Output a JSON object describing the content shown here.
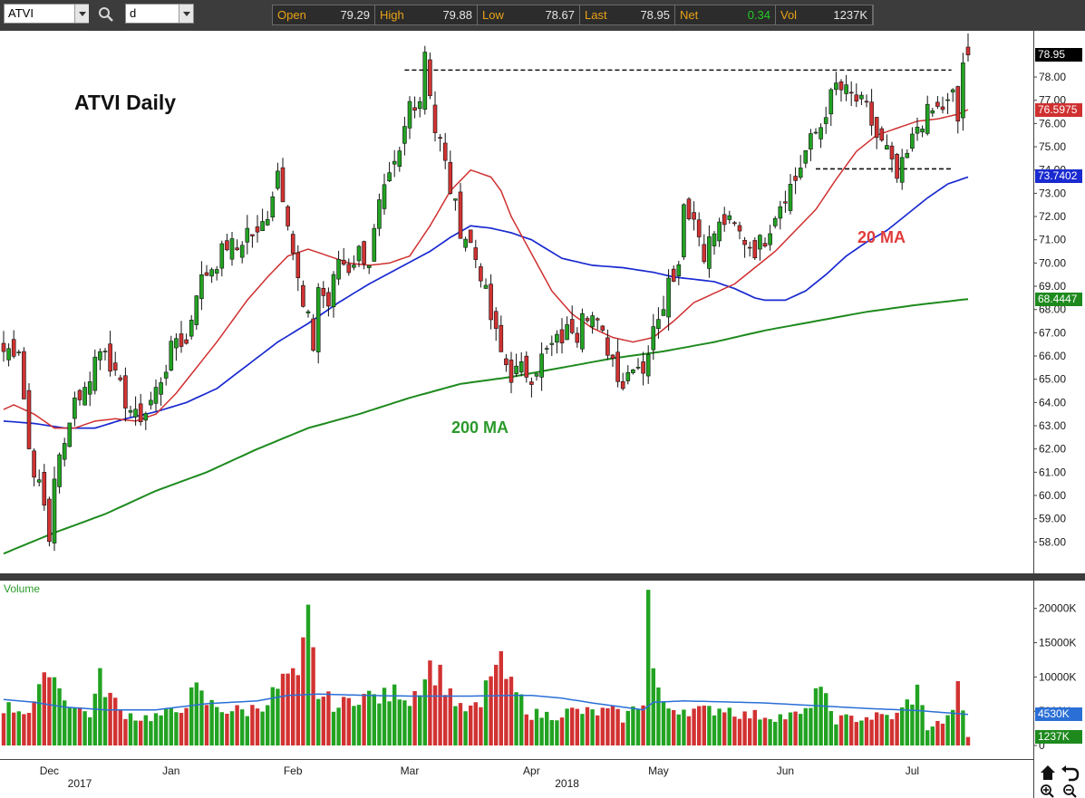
{
  "toolbar": {
    "symbol_value": "ATVI",
    "interval_value": "d",
    "quote": [
      {
        "label": "Open",
        "value": "79.29"
      },
      {
        "label": "High",
        "value": "79.88"
      },
      {
        "label": "Low",
        "value": "78.67"
      },
      {
        "label": "Last",
        "value": "78.95"
      },
      {
        "label": "Net",
        "value": "0.34"
      },
      {
        "label": "Vol",
        "value": "1237K"
      }
    ]
  },
  "colors": {
    "up": "#22a322",
    "down": "#d23232",
    "ma20": "#d03030",
    "ma50": "#1a2ad0",
    "ma200": "#1e8a1e",
    "vol_ma": "#2a6fd6"
  },
  "chart_data": {
    "type": "candlestick",
    "title": "ATVI Daily",
    "annotations": [
      "20 MA",
      "200 MA"
    ],
    "ylim": [
      57,
      79.6
    ],
    "price_ticks": [
      "58.00",
      "59.00",
      "60.00",
      "61.00",
      "62.00",
      "63.00",
      "64.00",
      "65.00",
      "66.00",
      "67.00",
      "68.00",
      "69.00",
      "70.00",
      "71.00",
      "72.00",
      "73.00",
      "74.00",
      "75.00",
      "76.00",
      "77.00",
      "78.00"
    ],
    "price_tags": [
      {
        "label": "78.95",
        "value": 78.95,
        "bg": "#000000",
        "fg": "#ffffff"
      },
      {
        "label": "76.5975",
        "value": 76.5975,
        "bg": "#d03030",
        "fg": "#ffffff"
      },
      {
        "label": "73.7402",
        "value": 73.7402,
        "bg": "#1a2ad0",
        "fg": "#ffffff"
      },
      {
        "label": "68.4447",
        "value": 68.4447,
        "bg": "#1e8a1e",
        "fg": "#ffffff"
      }
    ],
    "resistance_lines": [
      {
        "value": 78.3,
        "from": 79,
        "to": 186
      },
      {
        "value": 74.05,
        "from": 160,
        "to": 186
      }
    ],
    "month_labels": [
      {
        "label": "Dec",
        "index": 9
      },
      {
        "label": "Jan",
        "index": 33
      },
      {
        "label": "Feb",
        "index": 57
      },
      {
        "label": "Mar",
        "index": 80
      },
      {
        "label": "Apr",
        "index": 104
      },
      {
        "label": "May",
        "index": 129
      },
      {
        "label": "Jun",
        "index": 154
      },
      {
        "label": "Jul",
        "index": 179
      }
    ],
    "year_labels": [
      {
        "label": "2017",
        "index": 15
      },
      {
        "label": "2018",
        "index": 111
      }
    ],
    "anchors": {
      "close": [
        [
          0,
          66.2
        ],
        [
          3,
          66.4
        ],
        [
          5,
          62.0
        ],
        [
          8,
          59.5
        ],
        [
          9,
          58.1
        ],
        [
          10,
          60.9
        ],
        [
          12,
          62.1
        ],
        [
          13,
          63.5
        ],
        [
          14,
          64.2
        ],
        [
          16,
          64.5
        ],
        [
          18,
          65.9
        ],
        [
          20,
          66.5
        ],
        [
          22,
          65.0
        ],
        [
          24,
          64.1
        ],
        [
          26,
          63.3
        ],
        [
          28,
          63.6
        ],
        [
          30,
          64.5
        ],
        [
          32,
          65.6
        ],
        [
          34,
          66.8
        ],
        [
          36,
          66.5
        ],
        [
          38,
          68.9
        ],
        [
          40,
          69.6
        ],
        [
          42,
          70.1
        ],
        [
          44,
          70.8
        ],
        [
          46,
          70.6
        ],
        [
          48,
          71.4
        ],
        [
          50,
          71.1
        ],
        [
          52,
          72.2
        ],
        [
          54,
          74.0
        ],
        [
          56,
          72.0
        ],
        [
          57,
          70.5
        ],
        [
          58,
          69.2
        ],
        [
          59,
          68.0
        ],
        [
          60,
          67.5
        ],
        [
          61,
          66.4
        ],
        [
          62,
          69.0
        ],
        [
          64,
          68.2
        ],
        [
          66,
          70.2
        ],
        [
          68,
          69.8
        ],
        [
          70,
          70.5
        ],
        [
          72,
          70.1
        ],
        [
          74,
          72.4
        ],
        [
          76,
          73.5
        ],
        [
          78,
          74.6
        ],
        [
          80,
          76.9
        ],
        [
          82,
          77.1
        ],
        [
          83,
          79.2
        ],
        [
          85,
          75.7
        ],
        [
          86,
          75.2
        ],
        [
          88,
          73.2
        ],
        [
          90,
          71.5
        ],
        [
          92,
          70.8
        ],
        [
          94,
          69.6
        ],
        [
          96,
          67.6
        ],
        [
          98,
          66.1
        ],
        [
          100,
          65.2
        ],
        [
          102,
          65.4
        ],
        [
          104,
          65.2
        ],
        [
          106,
          65.9
        ],
        [
          108,
          66.4
        ],
        [
          110,
          66.8
        ],
        [
          112,
          67.3
        ],
        [
          113,
          67.0
        ],
        [
          114,
          68.2
        ],
        [
          116,
          67.7
        ],
        [
          118,
          66.8
        ],
        [
          120,
          65.9
        ],
        [
          121,
          65.3
        ],
        [
          122,
          64.8
        ],
        [
          124,
          65.8
        ],
        [
          126,
          65.5
        ],
        [
          128,
          67.0
        ],
        [
          129,
          67.9
        ],
        [
          130,
          68.3
        ],
        [
          131,
          69.8
        ],
        [
          132,
          69.1
        ],
        [
          133,
          70.3
        ],
        [
          134,
          72.6
        ],
        [
          136,
          71.9
        ],
        [
          138,
          70.5
        ],
        [
          140,
          71.3
        ],
        [
          142,
          71.8
        ],
        [
          144,
          71.5
        ],
        [
          146,
          71.0
        ],
        [
          148,
          70.6
        ],
        [
          150,
          71.1
        ],
        [
          152,
          72.2
        ],
        [
          154,
          73.0
        ],
        [
          156,
          73.6
        ],
        [
          158,
          74.8
        ],
        [
          160,
          75.6
        ],
        [
          161,
          75.9
        ],
        [
          162,
          76.6
        ],
        [
          164,
          77.6
        ],
        [
          166,
          77.3
        ],
        [
          168,
          77.0
        ],
        [
          170,
          76.6
        ],
        [
          172,
          75.4
        ],
        [
          174,
          74.8
        ],
        [
          175,
          74.1
        ],
        [
          176,
          73.6
        ],
        [
          178,
          74.6
        ],
        [
          180,
          75.9
        ],
        [
          182,
          76.4
        ],
        [
          184,
          76.6
        ],
        [
          186,
          76.8
        ],
        [
          187,
          77.2
        ],
        [
          188,
          76.1
        ],
        [
          189,
          78.61
        ],
        [
          190,
          78.95
        ]
      ],
      "ma20": [
        [
          0,
          63.7
        ],
        [
          2,
          63.9
        ],
        [
          6,
          63.5
        ],
        [
          10,
          62.9
        ],
        [
          14,
          62.9
        ],
        [
          18,
          63.2
        ],
        [
          22,
          63.3
        ],
        [
          26,
          63.2
        ],
        [
          30,
          63.5
        ],
        [
          34,
          64.4
        ],
        [
          38,
          65.5
        ],
        [
          42,
          66.6
        ],
        [
          46,
          67.8
        ],
        [
          48,
          68.4
        ],
        [
          52,
          69.4
        ],
        [
          56,
          70.3
        ],
        [
          60,
          70.6
        ],
        [
          64,
          70.3
        ],
        [
          68,
          70.0
        ],
        [
          72,
          69.9
        ],
        [
          76,
          70.0
        ],
        [
          80,
          70.3
        ],
        [
          84,
          71.6
        ],
        [
          88,
          73.1
        ],
        [
          92,
          74.0
        ],
        [
          96,
          73.7
        ],
        [
          98,
          73.1
        ],
        [
          100,
          72.0
        ],
        [
          104,
          70.4
        ],
        [
          108,
          68.8
        ],
        [
          112,
          67.8
        ],
        [
          116,
          67.2
        ],
        [
          120,
          66.8
        ],
        [
          124,
          66.6
        ],
        [
          128,
          66.8
        ],
        [
          132,
          67.5
        ],
        [
          136,
          68.3
        ],
        [
          140,
          68.7
        ],
        [
          144,
          69.1
        ],
        [
          148,
          69.8
        ],
        [
          152,
          70.5
        ],
        [
          156,
          71.4
        ],
        [
          160,
          72.3
        ],
        [
          164,
          73.6
        ],
        [
          168,
          74.8
        ],
        [
          172,
          75.5
        ],
        [
          176,
          75.8
        ],
        [
          180,
          76.1
        ],
        [
          184,
          76.2
        ],
        [
          188,
          76.4
        ],
        [
          190,
          76.6
        ]
      ],
      "ma50": [
        [
          0,
          63.2
        ],
        [
          6,
          63.1
        ],
        [
          12,
          62.9
        ],
        [
          18,
          62.9
        ],
        [
          24,
          63.3
        ],
        [
          30,
          63.6
        ],
        [
          36,
          64.0
        ],
        [
          42,
          64.6
        ],
        [
          48,
          65.6
        ],
        [
          54,
          66.6
        ],
        [
          60,
          67.4
        ],
        [
          66,
          68.3
        ],
        [
          72,
          69.1
        ],
        [
          78,
          69.8
        ],
        [
          84,
          70.5
        ],
        [
          88,
          71.1
        ],
        [
          92,
          71.6
        ],
        [
          96,
          71.5
        ],
        [
          100,
          71.3
        ],
        [
          104,
          71.0
        ],
        [
          110,
          70.2
        ],
        [
          116,
          69.9
        ],
        [
          122,
          69.8
        ],
        [
          128,
          69.6
        ],
        [
          132,
          69.4
        ],
        [
          136,
          69.3
        ],
        [
          140,
          69.2
        ],
        [
          144,
          68.9
        ],
        [
          148,
          68.5
        ],
        [
          150,
          68.4
        ],
        [
          154,
          68.4
        ],
        [
          158,
          68.8
        ],
        [
          162,
          69.5
        ],
        [
          166,
          70.3
        ],
        [
          170,
          70.9
        ],
        [
          174,
          71.4
        ],
        [
          178,
          72.1
        ],
        [
          182,
          72.8
        ],
        [
          186,
          73.4
        ],
        [
          190,
          73.7
        ]
      ],
      "ma200": [
        [
          0,
          57.5
        ],
        [
          10,
          58.4
        ],
        [
          20,
          59.2
        ],
        [
          30,
          60.2
        ],
        [
          40,
          61.0
        ],
        [
          50,
          62.0
        ],
        [
          60,
          62.9
        ],
        [
          70,
          63.5
        ],
        [
          80,
          64.2
        ],
        [
          90,
          64.8
        ],
        [
          100,
          65.1
        ],
        [
          110,
          65.5
        ],
        [
          120,
          65.9
        ],
        [
          130,
          66.2
        ],
        [
          140,
          66.6
        ],
        [
          150,
          67.1
        ],
        [
          160,
          67.5
        ],
        [
          170,
          67.9
        ],
        [
          180,
          68.2
        ],
        [
          190,
          68.45
        ]
      ]
    },
    "volume": {
      "label": "Volume",
      "ylim": [
        0,
        23000
      ],
      "ticks": [
        {
          "label": "20000K",
          "value": 20000
        },
        {
          "label": "15000K",
          "value": 15000
        },
        {
          "label": "10000K",
          "value": 10000
        },
        {
          "label": "5000K",
          "value": 5000
        },
        {
          "label": "0",
          "value": 0
        }
      ],
      "tags": [
        {
          "label": "4530K",
          "value": 4530,
          "bg": "#2a6fd6"
        },
        {
          "label": "1237K",
          "value": 1237,
          "bg": "#1e8a1e"
        }
      ],
      "anchors": [
        [
          0,
          5600
        ],
        [
          5,
          5100
        ],
        [
          8,
          9000
        ],
        [
          9,
          12400
        ],
        [
          11,
          8200
        ],
        [
          14,
          5500
        ],
        [
          17,
          4700
        ],
        [
          19,
          9600
        ],
        [
          23,
          5000
        ],
        [
          27,
          4000
        ],
        [
          31,
          4400
        ],
        [
          34,
          5000
        ],
        [
          38,
          8000
        ],
        [
          40,
          6200
        ],
        [
          44,
          5200
        ],
        [
          48,
          5000
        ],
        [
          52,
          6500
        ],
        [
          56,
          10200
        ],
        [
          58,
          9000
        ],
        [
          60,
          18300
        ],
        [
          62,
          7600
        ],
        [
          66,
          5600
        ],
        [
          70,
          7400
        ],
        [
          74,
          7000
        ],
        [
          76,
          7200
        ],
        [
          78,
          8100
        ],
        [
          80,
          6700
        ],
        [
          84,
          11500
        ],
        [
          86,
          10200
        ],
        [
          88,
          7800
        ],
        [
          90,
          5200
        ],
        [
          94,
          5500
        ],
        [
          96,
          11200
        ],
        [
          98,
          11500
        ],
        [
          100,
          8500
        ],
        [
          104,
          4600
        ],
        [
          108,
          4400
        ],
        [
          112,
          5000
        ],
        [
          116,
          4800
        ],
        [
          120,
          5000
        ],
        [
          122,
          4000
        ],
        [
          124,
          5200
        ],
        [
          126,
          6800
        ],
        [
          127,
          22000
        ],
        [
          128,
          11100
        ],
        [
          130,
          5500
        ],
        [
          134,
          5400
        ],
        [
          138,
          5000
        ],
        [
          142,
          5600
        ],
        [
          146,
          4400
        ],
        [
          150,
          4400
        ],
        [
          154,
          4200
        ],
        [
          158,
          4600
        ],
        [
          160,
          8400
        ],
        [
          162,
          6400
        ],
        [
          164,
          3800
        ],
        [
          168,
          4000
        ],
        [
          172,
          4200
        ],
        [
          176,
          4300
        ],
        [
          180,
          8000
        ],
        [
          182,
          2600
        ],
        [
          186,
          3800
        ],
        [
          188,
          8000
        ],
        [
          190,
          1237
        ]
      ],
      "ma_anchors": [
        [
          0,
          6700
        ],
        [
          6,
          6300
        ],
        [
          12,
          5600
        ],
        [
          20,
          5200
        ],
        [
          30,
          5200
        ],
        [
          40,
          6100
        ],
        [
          50,
          6500
        ],
        [
          56,
          7300
        ],
        [
          62,
          7500
        ],
        [
          72,
          7300
        ],
        [
          80,
          7200
        ],
        [
          86,
          7200
        ],
        [
          92,
          7200
        ],
        [
          100,
          7300
        ],
        [
          104,
          7300
        ],
        [
          110,
          6900
        ],
        [
          116,
          6200
        ],
        [
          122,
          5600
        ],
        [
          126,
          5200
        ],
        [
          128,
          6300
        ],
        [
          134,
          6500
        ],
        [
          140,
          6400
        ],
        [
          150,
          6200
        ],
        [
          160,
          5800
        ],
        [
          170,
          5400
        ],
        [
          180,
          5100
        ],
        [
          190,
          4530
        ]
      ]
    }
  }
}
